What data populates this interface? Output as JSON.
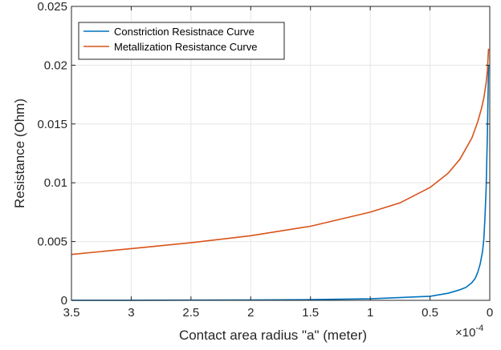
{
  "chart_data": {
    "type": "line",
    "xlabel": "Contact area radius \"a\" (meter)",
    "ylabel": "Resistance (Ohm)",
    "x_exponent_base": "×10",
    "x_exponent_power": "-4",
    "xlim": [
      0,
      3.5
    ],
    "x_reversed": true,
    "ylim": [
      0,
      0.025
    ],
    "x_ticks": [
      3.5,
      3,
      2.5,
      2,
      1.5,
      1,
      0.5,
      0
    ],
    "x_tick_labels": [
      "3.5",
      "3",
      "2.5",
      "2",
      "1.5",
      "1",
      "0.5",
      "0"
    ],
    "y_ticks": [
      0,
      0.005,
      0.01,
      0.015,
      0.02,
      0.025
    ],
    "y_tick_labels": [
      "0",
      "0.005",
      "0.01",
      "0.015",
      "0.02",
      "0.025"
    ],
    "grid": true,
    "legend_position": "top-left",
    "series": [
      {
        "name": "Constriction Resistnace Curve",
        "color": "#0072BD",
        "x": [
          3.5,
          3.0,
          2.5,
          2.0,
          1.5,
          1.0,
          0.5,
          0.35,
          0.25,
          0.2,
          0.15,
          0.12,
          0.1,
          0.08,
          0.06,
          0.05,
          0.04,
          0.03,
          0.02,
          0.01
        ],
        "y": [
          1e-05,
          1e-05,
          2e-05,
          3e-05,
          6e-05,
          0.00013,
          0.00035,
          0.0006,
          0.0009,
          0.0011,
          0.0015,
          0.0019,
          0.0024,
          0.0031,
          0.0042,
          0.0052,
          0.007,
          0.0095,
          0.014,
          0.02
        ]
      },
      {
        "name": "Metallization Resistance Curve",
        "color": "#D95319",
        "x": [
          3.5,
          3.0,
          2.5,
          2.0,
          1.5,
          1.0,
          0.75,
          0.5,
          0.35,
          0.25,
          0.15,
          0.1,
          0.07,
          0.05,
          0.03,
          0.02,
          0.01
        ],
        "y": [
          0.0039,
          0.0044,
          0.0049,
          0.0055,
          0.0063,
          0.0075,
          0.0083,
          0.0096,
          0.0108,
          0.012,
          0.0138,
          0.0152,
          0.0163,
          0.0172,
          0.0185,
          0.0195,
          0.0214
        ]
      }
    ]
  }
}
